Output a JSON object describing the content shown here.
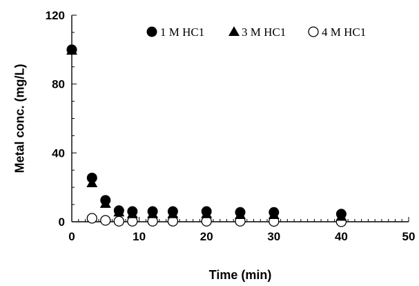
{
  "chart_data": {
    "type": "scatter",
    "xlabel": "Time (min)",
    "ylabel": "Metal conc. (mg/L)",
    "xlim": [
      0,
      50
    ],
    "ylim": [
      0,
      120
    ],
    "x_ticks": [
      0,
      10,
      20,
      30,
      40,
      50
    ],
    "x_tick_labels": [
      "0",
      "10",
      "20",
      "30",
      "40",
      "50"
    ],
    "y_ticks": [
      0,
      40,
      80,
      120
    ],
    "y_tick_labels": [
      "0",
      "40",
      "80",
      "120"
    ],
    "x_minor_step": 1,
    "y_minor_step": 10,
    "grid": false,
    "legend_position": "top-right",
    "series": [
      {
        "name": "1 M HC1",
        "marker": "filled-circle",
        "color": "#000000",
        "x": [
          0,
          3,
          5,
          7,
          9,
          12,
          15,
          20,
          25,
          30,
          40
        ],
        "y": [
          100,
          25.5,
          12.5,
          6.5,
          6,
          6,
          6,
          6,
          5.5,
          5.5,
          4.5
        ]
      },
      {
        "name": "3 M HC1",
        "marker": "filled-triangle",
        "color": "#000000",
        "x": [
          0,
          3,
          5,
          7,
          9,
          12,
          15,
          20,
          25,
          30,
          40
        ],
        "y": [
          99.5,
          22.5,
          10.5,
          5.5,
          4.5,
          4.5,
          4.5,
          4.5,
          4,
          4,
          3
        ]
      },
      {
        "name": "4 M HC1",
        "marker": "open-circle",
        "color": "#000000",
        "x": [
          3,
          5,
          7,
          9,
          12,
          15,
          20,
          25,
          30,
          40
        ],
        "y": [
          2,
          0.8,
          0.3,
          0.3,
          0.3,
          0.3,
          0.3,
          0.3,
          0.2,
          0
        ]
      }
    ]
  }
}
